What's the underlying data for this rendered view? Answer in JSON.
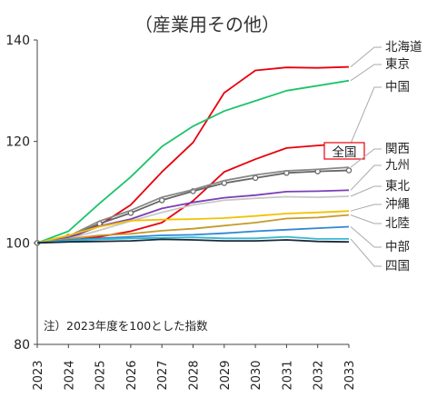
{
  "chart_data": {
    "type": "line",
    "title": "（産業用その他）",
    "xlabel": "",
    "ylabel": "",
    "x": [
      "2023",
      "2024",
      "2025",
      "2026",
      "2027",
      "2028",
      "2029",
      "2030",
      "2031",
      "2032",
      "2033"
    ],
    "ylim": [
      80,
      140
    ],
    "yticks": [
      80,
      100,
      120,
      140
    ],
    "grid": false,
    "annotation": "注）2023年度を100とした指数",
    "series": [
      {
        "name": "北海道",
        "color": "#e8000b",
        "values": [
          100,
          100.8,
          103.5,
          107.5,
          114,
          119.8,
          129.6,
          134,
          134.6,
          134.5,
          134.7
        ]
      },
      {
        "name": "東京",
        "color": "#1ec36a",
        "values": [
          100,
          102.3,
          107.8,
          113,
          119,
          123,
          126,
          128,
          130,
          131,
          132
        ]
      },
      {
        "name": "中国",
        "color": "#e8000b",
        "values": [
          100,
          100.5,
          101.2,
          102.3,
          104,
          108.3,
          114,
          116.5,
          118.7,
          119.2,
          119.6
        ]
      },
      {
        "name": "全国",
        "color": "#666666",
        "markers": true,
        "values": [
          100,
          101.2,
          103.8,
          105.9,
          108.4,
          110.2,
          111.8,
          112.8,
          113.8,
          114.1,
          114.3
        ]
      },
      {
        "name": "関西",
        "color": "#888888",
        "values": [
          100,
          101.3,
          104.3,
          106.4,
          109,
          110.5,
          112.3,
          113.4,
          114.2,
          114.5,
          114.9
        ]
      },
      {
        "name": "九州",
        "color": "#7b3fb5",
        "values": [
          100,
          101,
          103.3,
          104.7,
          106.8,
          108,
          108.9,
          109.4,
          110.1,
          110.2,
          110.4
        ]
      },
      {
        "name": "東北",
        "color": "#c8c8c8",
        "values": [
          100,
          100.8,
          102.5,
          104.3,
          106,
          107.5,
          108.4,
          108.8,
          109.1,
          109,
          109.2
        ]
      },
      {
        "name": "沖縄",
        "color": "#f2c200",
        "values": [
          100,
          101.5,
          103.2,
          104.4,
          104.6,
          104.7,
          104.9,
          105.3,
          105.8,
          106,
          106.3
        ]
      },
      {
        "name": "北陸",
        "color": "#c49a2c",
        "values": [
          100,
          100.8,
          101.5,
          101.8,
          102.4,
          102.8,
          103.4,
          104,
          104.8,
          105,
          105.5
        ]
      },
      {
        "name": "中部",
        "color": "#2f87d6",
        "values": [
          100,
          100.6,
          100.9,
          101.2,
          101.5,
          101.6,
          101.9,
          102.3,
          102.6,
          102.9,
          103.2
        ]
      },
      {
        "name": "四国",
        "color": "#38b8d0",
        "values": [
          100,
          100.4,
          100.7,
          100.9,
          101,
          101.1,
          100.9,
          100.9,
          101.2,
          100.8,
          100.8
        ]
      },
      {
        "name": "",
        "color": "#1a2a3a",
        "values": [
          100,
          100.2,
          100.3,
          100.4,
          100.7,
          100.6,
          100.4,
          100.4,
          100.6,
          100.3,
          100.2
        ]
      }
    ],
    "label_order": [
      "北海道",
      "東京",
      "中国",
      "全国",
      "関西",
      "九州",
      "東北",
      "沖縄",
      "北陸",
      "中部",
      "四国"
    ],
    "highlight_label": "全国"
  }
}
